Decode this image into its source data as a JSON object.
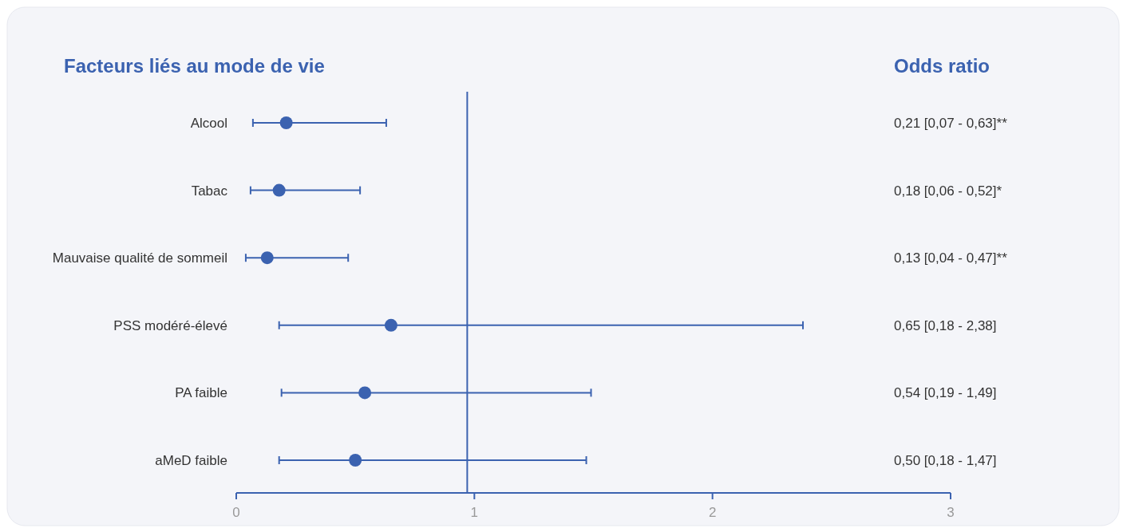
{
  "chart_data": {
    "type": "scatter",
    "orientation": "horizontal",
    "title": "Facteurs liés au mode de vie",
    "annotations": [
      "Odds ratio",
      "0,21 [0,07 - 0,63]**",
      "0,18 [0,06 - 0,52]*",
      "0,13 [0,04 - 0,47]**",
      "0,65 [0,18 - 2,38]",
      "0,54 [0,19 - 1,49]",
      "0,50 [0,18 - 1,47]"
    ],
    "categories": [
      "Alcool",
      "Tabac",
      "Mauvaise qualité de sommeil",
      "PSS modéré-élevé",
      "PA faible",
      "aMeD faible"
    ],
    "values": [
      0.21,
      0.18,
      0.13,
      0.65,
      0.54,
      0.5
    ],
    "errors": [
      [
        0.07,
        0.63
      ],
      [
        0.06,
        0.52
      ],
      [
        0.04,
        0.47
      ],
      [
        0.18,
        2.38
      ],
      [
        0.19,
        1.49
      ],
      [
        0.18,
        1.47
      ]
    ],
    "color": "#3b62b0",
    "marker": "circle",
    "xlim": [
      0,
      3
    ],
    "xticks": [
      0,
      1,
      2,
      3
    ],
    "ref_lines": [
      {
        "axis": "x",
        "value": 0.97,
        "color": "#3b62b0"
      }
    ]
  }
}
